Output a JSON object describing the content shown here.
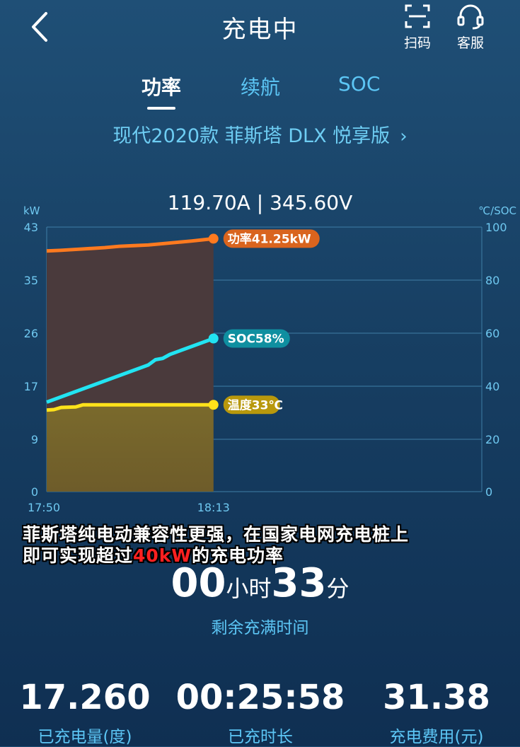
{
  "header": {
    "title": "充电中",
    "scan_label": "扫码",
    "service_label": "客服"
  },
  "tabs": [
    {
      "label": "功率",
      "active": true
    },
    {
      "label": "续航",
      "active": false
    },
    {
      "label": "SOC",
      "active": false
    }
  ],
  "vehicle": {
    "model": "现代2020款 菲斯塔 DLX 悦享版"
  },
  "readout": "119.70A | 345.60V",
  "chart_data": {
    "type": "line",
    "left_axis_unit": "kW",
    "right_axis_unit": "℃/SOC",
    "left_ticks": [
      "43",
      "35",
      "26",
      "17",
      "9",
      "0"
    ],
    "right_ticks": [
      "100",
      "80",
      "60",
      "40",
      "20",
      "0"
    ],
    "ylim_left": [
      0,
      43
    ],
    "ylim_right": [
      0,
      100
    ],
    "x_start_label": "17:50",
    "x_current_label": "18:13",
    "grid": true,
    "series": [
      {
        "name": "功率",
        "axis": "left",
        "color": "#ff7a1f",
        "x": [
          0,
          2,
          5,
          8,
          10,
          12,
          14,
          16,
          18,
          20,
          23
        ],
        "y": [
          39.4,
          39.5,
          39.7,
          39.9,
          40.1,
          40.2,
          40.3,
          40.5,
          40.7,
          40.9,
          41.25
        ]
      },
      {
        "name": "SOC",
        "axis": "right",
        "color": "#22e4f2",
        "x": [
          0,
          4,
          8,
          12,
          14,
          15,
          16,
          17,
          20,
          23
        ],
        "y": [
          34,
          38,
          42,
          46,
          48,
          50,
          50.5,
          52,
          55,
          58
        ]
      },
      {
        "name": "温度",
        "axis": "right",
        "color": "#ffe21a",
        "x": [
          0,
          1,
          2,
          4,
          5,
          7,
          23
        ],
        "y": [
          31,
          31.2,
          32,
          32.2,
          33,
          33,
          33
        ]
      }
    ],
    "labels": {
      "power": "功率41.25kW",
      "soc": "SOC58%",
      "temp": "温度33℃"
    },
    "colors": {
      "power_pill": "#d9641e",
      "soc_pill": "#0f8fa0",
      "temp_pill": "#b8980c",
      "cursor": "#ffe21a"
    }
  },
  "overlay": {
    "line1": "菲斯塔纯电动兼容性更强，在国家电网充电桩上",
    "line2_a": "即可实现超过",
    "line2_b": "40kW",
    "line2_c": "的充电功率"
  },
  "remaining": {
    "hours": "00",
    "hours_unit": "小时",
    "minutes": "33",
    "minutes_unit": "分",
    "label": "剩余充满时间"
  },
  "stats": {
    "energy": {
      "value": "17.260",
      "label": "已充电量(度)"
    },
    "duration": {
      "value": "00:25:58",
      "label": "已充时长"
    },
    "cost": {
      "value": "31.38",
      "label": "充电费用(元)"
    }
  }
}
